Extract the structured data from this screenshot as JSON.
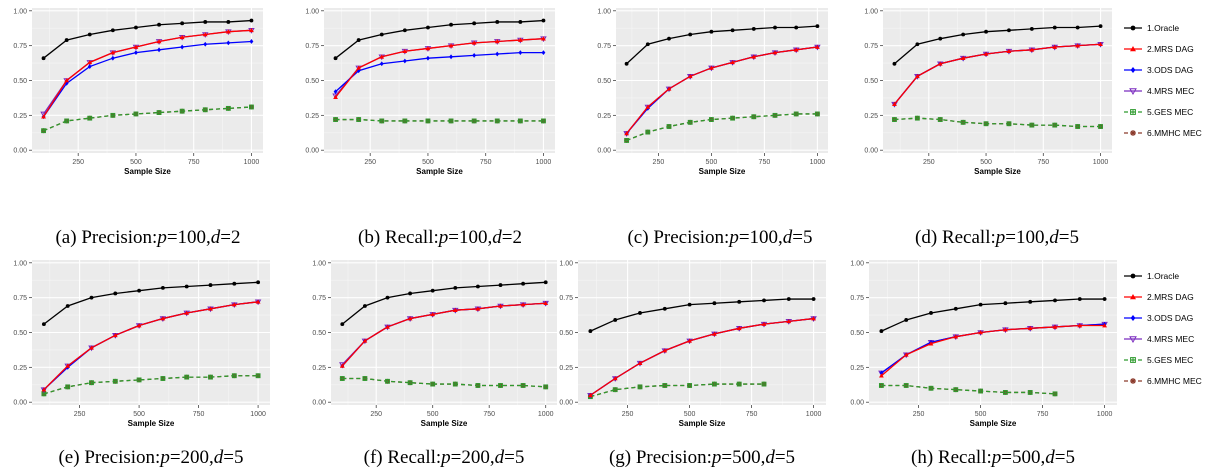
{
  "legend": {
    "items": [
      {
        "label": "1.Oracle",
        "color": "#000000",
        "marker": "circle",
        "dash": "solid"
      },
      {
        "label": "2.MRS DAG",
        "color": "#ff0000",
        "marker": "triangle-up",
        "dash": "solid"
      },
      {
        "label": "3.ODS DAG",
        "color": "#0000ff",
        "marker": "diamond",
        "dash": "solid"
      },
      {
        "label": "4.MRS MEC",
        "color": "#7b2cbf",
        "marker": "triangle-down-open",
        "dash": "solid"
      },
      {
        "label": "5.GES MEC",
        "color": "#2e9a2e",
        "marker": "square-cross-open",
        "dash": "dashed"
      },
      {
        "label": "6.MMHC MEC",
        "color": "#8b3a2b",
        "marker": "asterisk",
        "dash": "dashed"
      }
    ]
  },
  "chart_data": [
    {
      "type": "line",
      "caption": "(a) Precision:p=100,d=2",
      "caption_parts": {
        "head": "(a) Precision:",
        "p": "100",
        "d": "2"
      },
      "xlabel": "Sample Size",
      "xlim": [
        50,
        1050
      ],
      "ylim": [
        -0.02,
        1.02
      ],
      "xticks": [
        250,
        500,
        750,
        1000
      ],
      "yticks": [
        0.0,
        0.25,
        0.5,
        0.75,
        1.0
      ],
      "grid": true,
      "legend": "none",
      "x": [
        100,
        200,
        300,
        400,
        500,
        600,
        700,
        800,
        900,
        1000
      ],
      "series": [
        {
          "name": "1.Oracle",
          "values": [
            0.66,
            0.79,
            0.83,
            0.86,
            0.88,
            0.9,
            0.91,
            0.92,
            0.92,
            0.93
          ]
        },
        {
          "name": "2.MRS DAG",
          "values": [
            0.24,
            0.5,
            0.63,
            0.7,
            0.74,
            0.78,
            0.81,
            0.83,
            0.85,
            0.86
          ]
        },
        {
          "name": "3.ODS DAG",
          "values": [
            0.24,
            0.48,
            0.6,
            0.66,
            0.7,
            0.72,
            0.74,
            0.76,
            0.77,
            0.78
          ]
        },
        {
          "name": "4.MRS MEC",
          "values": [
            0.26,
            0.5,
            0.63,
            0.7,
            0.74,
            0.78,
            0.81,
            0.83,
            0.85,
            0.86
          ]
        },
        {
          "name": "5.GES MEC",
          "values": [
            0.14,
            0.21,
            0.23,
            0.25,
            0.26,
            0.27,
            0.28,
            0.29,
            0.3,
            0.31
          ]
        },
        {
          "name": "6.MMHC MEC",
          "values": [
            0.14,
            0.21,
            0.23,
            0.25,
            0.26,
            0.27,
            0.28,
            0.29,
            0.3,
            0.31
          ]
        }
      ]
    },
    {
      "type": "line",
      "caption": "(b) Recall:p=100,d=2",
      "caption_parts": {
        "head": "(b) Recall:",
        "p": "100",
        "d": "2"
      },
      "xlabel": "Sample Size",
      "xlim": [
        50,
        1050
      ],
      "ylim": [
        -0.02,
        1.02
      ],
      "xticks": [
        250,
        500,
        750,
        1000
      ],
      "yticks": [
        0.0,
        0.25,
        0.5,
        0.75,
        1.0
      ],
      "grid": true,
      "legend": "none",
      "x": [
        100,
        200,
        300,
        400,
        500,
        600,
        700,
        800,
        900,
        1000
      ],
      "series": [
        {
          "name": "1.Oracle",
          "values": [
            0.66,
            0.79,
            0.83,
            0.86,
            0.88,
            0.9,
            0.91,
            0.92,
            0.92,
            0.93
          ]
        },
        {
          "name": "2.MRS DAG",
          "values": [
            0.38,
            0.59,
            0.67,
            0.71,
            0.73,
            0.75,
            0.77,
            0.78,
            0.79,
            0.8
          ]
        },
        {
          "name": "3.ODS DAG",
          "values": [
            0.42,
            0.57,
            0.62,
            0.64,
            0.66,
            0.67,
            0.68,
            0.69,
            0.7,
            0.7
          ]
        },
        {
          "name": "4.MRS MEC",
          "values": [
            0.39,
            0.59,
            0.67,
            0.71,
            0.73,
            0.75,
            0.77,
            0.78,
            0.79,
            0.8
          ]
        },
        {
          "name": "5.GES MEC",
          "values": [
            0.22,
            0.22,
            0.21,
            0.21,
            0.21,
            0.21,
            0.21,
            0.21,
            0.21,
            0.21
          ]
        },
        {
          "name": "6.MMHC MEC",
          "values": [
            0.22,
            0.22,
            0.21,
            0.21,
            0.21,
            0.21,
            0.21,
            0.21,
            0.21,
            0.21
          ]
        }
      ]
    },
    {
      "type": "line",
      "caption": "(c) Precision:p=100,d=5",
      "caption_parts": {
        "head": "(c) Precision:",
        "p": "100",
        "d": "5"
      },
      "xlabel": "Sample Size",
      "xlim": [
        50,
        1050
      ],
      "ylim": [
        -0.02,
        1.02
      ],
      "xticks": [
        250,
        500,
        750,
        1000
      ],
      "yticks": [
        0.0,
        0.25,
        0.5,
        0.75,
        1.0
      ],
      "grid": true,
      "legend": "none",
      "x": [
        100,
        200,
        300,
        400,
        500,
        600,
        700,
        800,
        900,
        1000
      ],
      "series": [
        {
          "name": "1.Oracle",
          "values": [
            0.62,
            0.76,
            0.8,
            0.83,
            0.85,
            0.86,
            0.87,
            0.88,
            0.88,
            0.89
          ]
        },
        {
          "name": "2.MRS DAG",
          "values": [
            0.12,
            0.31,
            0.44,
            0.53,
            0.59,
            0.63,
            0.67,
            0.7,
            0.72,
            0.74
          ]
        },
        {
          "name": "3.ODS DAG",
          "values": [
            0.12,
            0.3,
            0.44,
            0.53,
            0.59,
            0.63,
            0.67,
            0.7,
            0.72,
            0.74
          ]
        },
        {
          "name": "4.MRS MEC",
          "values": [
            0.12,
            0.31,
            0.44,
            0.53,
            0.59,
            0.63,
            0.67,
            0.7,
            0.72,
            0.74
          ]
        },
        {
          "name": "5.GES MEC",
          "values": [
            0.07,
            0.13,
            0.17,
            0.2,
            0.22,
            0.23,
            0.24,
            0.25,
            0.26,
            0.26
          ]
        },
        {
          "name": "6.MMHC MEC",
          "values": [
            0.07,
            0.13,
            0.17,
            0.2,
            0.22,
            0.23,
            0.24,
            0.25,
            0.26,
            0.26
          ]
        }
      ]
    },
    {
      "type": "line",
      "caption": "(d) Recall:p=100,d=5",
      "caption_parts": {
        "head": "(d) Recall:",
        "p": "100",
        "d": "5"
      },
      "xlabel": "Sample Size",
      "xlim": [
        50,
        1050
      ],
      "ylim": [
        -0.02,
        1.02
      ],
      "xticks": [
        250,
        500,
        750,
        1000
      ],
      "yticks": [
        0.0,
        0.25,
        0.5,
        0.75,
        1.0
      ],
      "grid": true,
      "legend": "right",
      "x": [
        100,
        200,
        300,
        400,
        500,
        600,
        700,
        800,
        900,
        1000
      ],
      "series": [
        {
          "name": "1.Oracle",
          "values": [
            0.62,
            0.76,
            0.8,
            0.83,
            0.85,
            0.86,
            0.87,
            0.88,
            0.88,
            0.89
          ]
        },
        {
          "name": "2.MRS DAG",
          "values": [
            0.33,
            0.53,
            0.62,
            0.66,
            0.69,
            0.71,
            0.72,
            0.74,
            0.75,
            0.76
          ]
        },
        {
          "name": "3.ODS DAG",
          "values": [
            0.33,
            0.53,
            0.62,
            0.66,
            0.69,
            0.71,
            0.72,
            0.74,
            0.75,
            0.76
          ]
        },
        {
          "name": "4.MRS MEC",
          "values": [
            0.33,
            0.53,
            0.62,
            0.66,
            0.69,
            0.71,
            0.72,
            0.74,
            0.75,
            0.76
          ]
        },
        {
          "name": "5.GES MEC",
          "values": [
            0.22,
            0.23,
            0.22,
            0.2,
            0.19,
            0.19,
            0.18,
            0.18,
            0.17,
            0.17
          ]
        },
        {
          "name": "6.MMHC MEC",
          "values": [
            0.22,
            0.23,
            0.22,
            0.2,
            0.19,
            0.19,
            0.18,
            0.18,
            0.17,
            0.17
          ]
        }
      ]
    },
    {
      "type": "line",
      "caption": "(e) Precision:p=200,d=5",
      "caption_parts": {
        "head": "(e) Precision:",
        "p": "200",
        "d": "5"
      },
      "xlabel": "Sample Size",
      "xlim": [
        50,
        1050
      ],
      "ylim": [
        -0.02,
        1.02
      ],
      "xticks": [
        250,
        500,
        750,
        1000
      ],
      "yticks": [
        0.0,
        0.25,
        0.5,
        0.75,
        1.0
      ],
      "grid": true,
      "legend": "none",
      "x": [
        100,
        200,
        300,
        400,
        500,
        600,
        700,
        800,
        900,
        1000
      ],
      "series": [
        {
          "name": "1.Oracle",
          "values": [
            0.56,
            0.69,
            0.75,
            0.78,
            0.8,
            0.82,
            0.83,
            0.84,
            0.85,
            0.86
          ]
        },
        {
          "name": "2.MRS DAG",
          "values": [
            0.09,
            0.26,
            0.39,
            0.48,
            0.55,
            0.6,
            0.64,
            0.67,
            0.7,
            0.72
          ]
        },
        {
          "name": "3.ODS DAG",
          "values": [
            0.09,
            0.25,
            0.39,
            0.48,
            0.55,
            0.6,
            0.64,
            0.67,
            0.7,
            0.72
          ]
        },
        {
          "name": "4.MRS MEC",
          "values": [
            0.09,
            0.26,
            0.39,
            0.48,
            0.55,
            0.6,
            0.64,
            0.67,
            0.7,
            0.72
          ]
        },
        {
          "name": "5.GES MEC",
          "values": [
            0.06,
            0.11,
            0.14,
            0.15,
            0.16,
            0.17,
            0.18,
            0.18,
            0.19,
            0.19
          ]
        },
        {
          "name": "6.MMHC MEC",
          "values": [
            0.06,
            0.11,
            0.14,
            0.15,
            0.16,
            0.17,
            0.18,
            0.18,
            0.19,
            0.19
          ]
        }
      ]
    },
    {
      "type": "line",
      "caption": "(f) Recall:p=200,d=5",
      "caption_parts": {
        "head": "(f) Recall:",
        "p": "200",
        "d": "5"
      },
      "xlabel": "Sample Size",
      "xlim": [
        50,
        1050
      ],
      "ylim": [
        -0.02,
        1.02
      ],
      "xticks": [
        250,
        500,
        750,
        1000
      ],
      "yticks": [
        0.0,
        0.25,
        0.5,
        0.75,
        1.0
      ],
      "grid": true,
      "legend": "none",
      "x": [
        100,
        200,
        300,
        400,
        500,
        600,
        700,
        800,
        900,
        1000
      ],
      "series": [
        {
          "name": "1.Oracle",
          "values": [
            0.56,
            0.69,
            0.75,
            0.78,
            0.8,
            0.82,
            0.83,
            0.84,
            0.85,
            0.86
          ]
        },
        {
          "name": "2.MRS DAG",
          "values": [
            0.26,
            0.44,
            0.54,
            0.6,
            0.63,
            0.66,
            0.67,
            0.69,
            0.7,
            0.71
          ]
        },
        {
          "name": "3.ODS DAG",
          "values": [
            0.26,
            0.44,
            0.54,
            0.6,
            0.63,
            0.66,
            0.67,
            0.69,
            0.7,
            0.71
          ]
        },
        {
          "name": "4.MRS MEC",
          "values": [
            0.27,
            0.44,
            0.54,
            0.6,
            0.63,
            0.66,
            0.67,
            0.69,
            0.7,
            0.71
          ]
        },
        {
          "name": "5.GES MEC",
          "values": [
            0.17,
            0.17,
            0.15,
            0.14,
            0.13,
            0.13,
            0.12,
            0.12,
            0.12,
            0.11
          ]
        },
        {
          "name": "6.MMHC MEC",
          "values": [
            0.17,
            0.17,
            0.15,
            0.14,
            0.13,
            0.13,
            0.12,
            0.12,
            0.12,
            0.11
          ]
        }
      ]
    },
    {
      "type": "line",
      "caption": "(g) Precision:p=500,d=5",
      "caption_parts": {
        "head": "(g) Precision:",
        "p": "500",
        "d": "5"
      },
      "xlabel": "Sample Size",
      "xlim": [
        50,
        1050
      ],
      "ylim": [
        -0.02,
        1.02
      ],
      "xticks": [
        250,
        500,
        750,
        1000
      ],
      "yticks": [
        0.0,
        0.25,
        0.5,
        0.75,
        1.0
      ],
      "grid": true,
      "legend": "none",
      "x": [
        100,
        200,
        300,
        400,
        500,
        600,
        700,
        800,
        900,
        1000
      ],
      "series": [
        {
          "name": "1.Oracle",
          "values": [
            0.51,
            0.59,
            0.64,
            0.67,
            0.7,
            0.71,
            0.72,
            0.73,
            0.74,
            0.74
          ]
        },
        {
          "name": "2.MRS DAG",
          "values": [
            0.05,
            0.17,
            0.28,
            0.37,
            0.44,
            0.49,
            0.53,
            0.56,
            0.58,
            0.6
          ]
        },
        {
          "name": "3.ODS DAG",
          "values": [
            0.05,
            0.17,
            0.28,
            0.37,
            0.44,
            0.49,
            0.53,
            0.56,
            0.58,
            0.6
          ]
        },
        {
          "name": "4.MRS MEC",
          "values": [
            0.05,
            0.17,
            0.28,
            0.37,
            0.44,
            0.49,
            0.53,
            0.56,
            0.58,
            0.6
          ]
        },
        {
          "name": "5.GES MEC",
          "values": [
            0.04,
            0.09,
            0.11,
            0.12,
            0.12,
            0.13,
            0.13,
            0.13,
            null,
            null
          ]
        },
        {
          "name": "6.MMHC MEC",
          "values": [
            0.04,
            0.09,
            0.11,
            0.12,
            0.12,
            0.13,
            0.13,
            0.13,
            null,
            null
          ]
        }
      ]
    },
    {
      "type": "line",
      "caption": "(h) Recall:p=500,d=5",
      "caption_parts": {
        "head": "(h) Recall:",
        "p": "500",
        "d": "5"
      },
      "xlabel": "Sample Size",
      "xlim": [
        50,
        1050
      ],
      "ylim": [
        -0.02,
        1.02
      ],
      "xticks": [
        250,
        500,
        750,
        1000
      ],
      "yticks": [
        0.0,
        0.25,
        0.5,
        0.75,
        1.0
      ],
      "grid": true,
      "legend": "right",
      "x": [
        100,
        200,
        300,
        400,
        500,
        600,
        700,
        800,
        900,
        1000
      ],
      "series": [
        {
          "name": "1.Oracle",
          "values": [
            0.51,
            0.59,
            0.64,
            0.67,
            0.7,
            0.71,
            0.72,
            0.73,
            0.74,
            0.74
          ]
        },
        {
          "name": "2.MRS DAG",
          "values": [
            0.19,
            0.34,
            0.42,
            0.47,
            0.5,
            0.52,
            0.53,
            0.54,
            0.55,
            0.55
          ]
        },
        {
          "name": "3.ODS DAG",
          "values": [
            0.21,
            0.34,
            0.43,
            0.47,
            0.5,
            0.52,
            0.53,
            0.54,
            0.55,
            0.56
          ]
        },
        {
          "name": "4.MRS MEC",
          "values": [
            0.21,
            0.34,
            0.43,
            0.47,
            0.5,
            0.52,
            0.53,
            0.54,
            0.55,
            0.56
          ]
        },
        {
          "name": "5.GES MEC",
          "values": [
            0.12,
            0.12,
            0.1,
            0.09,
            0.08,
            0.07,
            0.07,
            0.06,
            null,
            null
          ]
        },
        {
          "name": "6.MMHC MEC",
          "values": [
            0.12,
            0.12,
            0.1,
            0.09,
            0.08,
            0.07,
            0.07,
            0.06,
            null,
            null
          ]
        }
      ]
    }
  ]
}
